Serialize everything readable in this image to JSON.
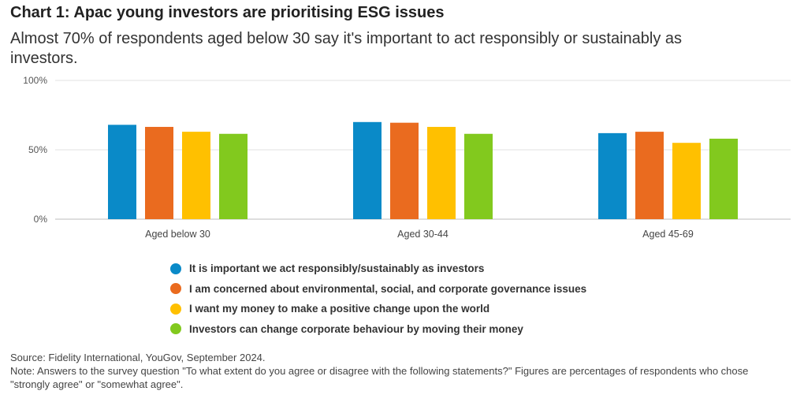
{
  "header": {
    "title": "Chart 1: Apac young investors are prioritising ESG issues",
    "subtitle": "Almost 70% of respondents aged below 30 say it's important to act responsibly or sustainably as investors."
  },
  "colors": {
    "series": [
      "#0a8ac8",
      "#ea6b1f",
      "#ffc000",
      "#82c91e"
    ],
    "grid": "#e0e0e0",
    "axis": "#bdbdbd"
  },
  "chart_data": {
    "type": "bar",
    "categories": [
      "Aged below 30",
      "Aged 30-44",
      "Aged 45-69"
    ],
    "series": [
      {
        "name": "It is important we act responsibly/sustainably as investors",
        "values": [
          68,
          70,
          62
        ]
      },
      {
        "name": "I am concerned about environmental, social, and corporate governance issues",
        "values": [
          66.5,
          69.5,
          63
        ]
      },
      {
        "name": "I want my money to make a positive change upon the world",
        "values": [
          63,
          66.5,
          55
        ]
      },
      {
        "name": "Investors can change corporate behaviour by moving their money",
        "values": [
          61.5,
          61.5,
          58
        ]
      }
    ],
    "ylim": [
      0,
      100
    ],
    "yticks": [
      "0%",
      "50%",
      "100%"
    ],
    "ytick_values": [
      0,
      50,
      100
    ],
    "grid": true,
    "legend_position": "bottom-left"
  },
  "footer": {
    "source": "Source: Fidelity International, YouGov, September 2024.",
    "note": "Note: Answers to the survey question \"To what extent do you agree or disagree with the following statements?\" Figures are percentages of respondents who chose \"strongly agree\" or \"somewhat agree\"."
  }
}
